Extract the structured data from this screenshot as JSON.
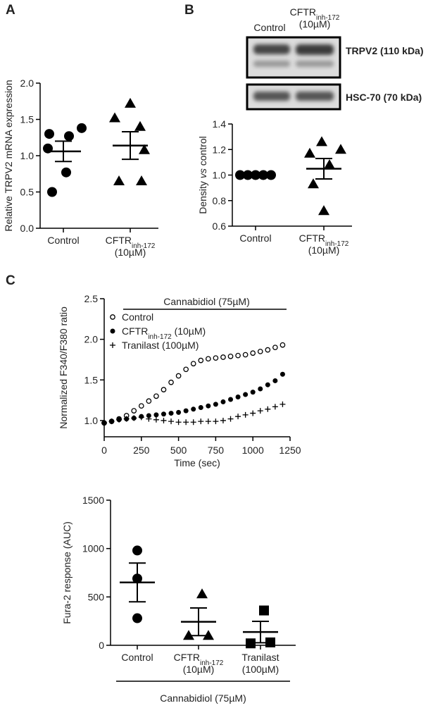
{
  "panel_labels": [
    "A",
    "B",
    "C"
  ],
  "blot": {
    "lanes": [
      {
        "text": "Control"
      },
      {
        "text": "CFTR",
        "sub": "inh-172",
        "line2": "(10µM)"
      }
    ],
    "bands": [
      "TRPV2 (110 kDa)",
      "HSC-70 (70 kDa)"
    ]
  },
  "chart_data": [
    {
      "type": "dotplot",
      "ylabel": {
        "text": "Relative TRPV2 mRNA expression"
      },
      "ylim": [
        0,
        2
      ],
      "yticks": [
        {
          "value": 0,
          "label": "0.0"
        },
        0.5,
        {
          "value": 1,
          "label": "1.0"
        },
        1.5,
        {
          "value": 2,
          "label": "2.0"
        }
      ],
      "categories": [
        {
          "text": "Control"
        },
        {
          "text": "CFTR",
          "sub": "inh-172",
          "line2": "(10µM)"
        }
      ],
      "groups": [
        {
          "marker": "circle",
          "color": "#000000",
          "values": [
            1.38,
            1.3,
            1.27,
            1.1,
            0.77,
            0.5
          ],
          "mean": 1.06,
          "sem": 0.14
        },
        {
          "marker": "triangle",
          "color": "#000000",
          "values": [
            1.72,
            1.52,
            1.4,
            1.08,
            0.65,
            0.65
          ],
          "mean": 1.14,
          "sem": 0.19
        }
      ]
    },
    {
      "type": "dotplot",
      "ylabel": {
        "text": "Density ",
        "italic": "vs",
        "after": " control"
      },
      "ylim": [
        0.6,
        1.4
      ],
      "yticks": [
        0.6,
        0.8,
        {
          "value": 1,
          "label": "1.0"
        },
        1.2,
        1.4
      ],
      "categories": [
        {
          "text": "Control"
        },
        {
          "text": "CFTR",
          "sub": "inh-172",
          "line2": "(10µM)"
        }
      ],
      "groups": [
        {
          "marker": "circle",
          "color": "#000000",
          "values": [
            1.0,
            1.0,
            1.0,
            1.0,
            1.0
          ],
          "mean": 1.0,
          "sem": 0.0
        },
        {
          "marker": "triangle",
          "color": "#000000",
          "values": [
            1.26,
            1.2,
            1.17,
            1.08,
            0.93,
            0.72
          ],
          "mean": 1.05,
          "sem": 0.08
        }
      ]
    },
    {
      "type": "line",
      "xlabel": {
        "text": "Time (sec)"
      },
      "ylabel": {
        "text": "Normalized F340/F380 ratio"
      },
      "annotation": "Cannabidiol (75µM)",
      "xlim": [
        0,
        1250
      ],
      "xticks": [
        0,
        250,
        500,
        750,
        1000,
        1250
      ],
      "ylim": [
        0.8,
        2.5
      ],
      "yticks": [
        {
          "value": 1,
          "label": "1.0"
        },
        1.5,
        {
          "value": 2,
          "label": "2.0"
        },
        2.5
      ],
      "x": [
        0,
        50,
        100,
        150,
        200,
        250,
        300,
        350,
        400,
        450,
        500,
        550,
        600,
        650,
        700,
        750,
        800,
        850,
        900,
        950,
        1000,
        1050,
        1100,
        1150,
        1200
      ],
      "series": [
        {
          "name": {
            "text": "Control"
          },
          "marker": "open-circle",
          "color": "#000000",
          "values": [
            0.97,
            0.99,
            1.02,
            1.06,
            1.12,
            1.18,
            1.24,
            1.3,
            1.38,
            1.47,
            1.55,
            1.63,
            1.7,
            1.74,
            1.76,
            1.77,
            1.78,
            1.79,
            1.8,
            1.81,
            1.83,
            1.85,
            1.87,
            1.9,
            1.93
          ]
        },
        {
          "name": {
            "text": "CFTR",
            "sub": "inh-172",
            "after": " (10µM)"
          },
          "marker": "circle",
          "color": "#000000",
          "values": [
            0.97,
            0.99,
            1.01,
            1.02,
            1.03,
            1.05,
            1.06,
            1.07,
            1.08,
            1.09,
            1.1,
            1.12,
            1.14,
            1.16,
            1.18,
            1.2,
            1.23,
            1.26,
            1.29,
            1.32,
            1.35,
            1.39,
            1.44,
            1.49,
            1.57
          ]
        },
        {
          "name": {
            "text": "Tranilast (100µM)"
          },
          "marker": "plus",
          "color": "#000000",
          "values": [
            0.97,
            0.99,
            1.01,
            1.02,
            1.03,
            1.04,
            1.02,
            1.01,
            1.0,
            0.99,
            0.98,
            0.98,
            0.98,
            0.99,
            0.99,
            0.99,
            1.0,
            1.02,
            1.05,
            1.07,
            1.09,
            1.12,
            1.14,
            1.17,
            1.2
          ]
        }
      ]
    },
    {
      "type": "dotplot",
      "ylabel": {
        "text": "Fura-2 response (AUC)"
      },
      "ylim": [
        0,
        1500
      ],
      "yticks": [
        0,
        500,
        1000,
        1500
      ],
      "bracket_label": "Cannabidiol (75µM)",
      "categories": [
        {
          "text": "Control"
        },
        {
          "text": "CFTR",
          "sub": "inh-172",
          "line2": "(10µM)"
        },
        {
          "text": "Tranilast",
          "line2": "(100µM)"
        }
      ],
      "groups": [
        {
          "marker": "circle",
          "color": "#000000",
          "values": [
            980,
            690,
            280
          ],
          "mean": 650,
          "sem": 200
        },
        {
          "marker": "triangle",
          "color": "#000000",
          "values": [
            530,
            100,
            100
          ],
          "mean": 243,
          "sem": 143
        },
        {
          "marker": "square",
          "color": "#000000",
          "values": [
            360,
            20,
            30
          ],
          "mean": 137,
          "sem": 111
        }
      ]
    }
  ]
}
